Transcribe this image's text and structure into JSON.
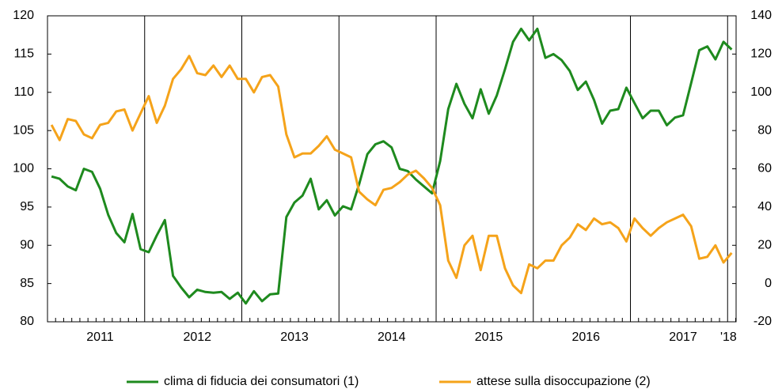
{
  "chart_data": {
    "type": "line",
    "categories": [
      null,
      null,
      null,
      null,
      null,
      null,
      "2011",
      null,
      null,
      null,
      null,
      null,
      null,
      null,
      null,
      null,
      null,
      null,
      "2012",
      null,
      null,
      null,
      null,
      null,
      null,
      null,
      null,
      null,
      null,
      null,
      "2013",
      null,
      null,
      null,
      null,
      null,
      null,
      null,
      null,
      null,
      null,
      null,
      "2014",
      null,
      null,
      null,
      null,
      null,
      null,
      null,
      null,
      null,
      null,
      null,
      "2015",
      null,
      null,
      null,
      null,
      null,
      null,
      null,
      null,
      null,
      null,
      null,
      "2016",
      null,
      null,
      null,
      null,
      null,
      null,
      null,
      null,
      null,
      null,
      null,
      "2017",
      null,
      null,
      null,
      null,
      null,
      "'18"
    ],
    "series": [
      {
        "name": "clima di fiducia dei consumatori (1)",
        "color": "#1e8a1e",
        "values": [
          99,
          98.7,
          97.7,
          97.2,
          100,
          99.6,
          97.4,
          94,
          91.6,
          90.4,
          94.1,
          89.5,
          89.1,
          91.3,
          93.3,
          86,
          84.5,
          83.2,
          84.2,
          83.9,
          83.8,
          83.9,
          83,
          83.8,
          82.4,
          84,
          82.7,
          83.6,
          83.7,
          93.7,
          95.6,
          96.5,
          98.7,
          94.7,
          95.9,
          93.9,
          95.1,
          94.7,
          98,
          101.9,
          103.2,
          103.6,
          102.8,
          100,
          99.7,
          98.6,
          97.7,
          96.8,
          101,
          107.8,
          111.1,
          108.5,
          106.6,
          110.4,
          107.2,
          109.6,
          113,
          116.6,
          118.3,
          116.8,
          118.3,
          114.5,
          115,
          114.2,
          112.8,
          110.3,
          111.4,
          109,
          105.9,
          107.6,
          107.8,
          110.6,
          108.6,
          106.6,
          107.6,
          107.6,
          105.7,
          106.7,
          107,
          111.2,
          115.5,
          116,
          114.3,
          116.6,
          115.6
        ]
      },
      {
        "name": "attese sulla disoccupazione (2)",
        "color": "#f5a31a",
        "axis": "y2",
        "values": [
          83,
          75,
          86,
          85,
          78,
          76,
          83,
          84,
          90,
          91,
          80,
          89,
          98,
          84,
          93,
          107,
          112,
          119,
          110,
          109,
          114,
          108,
          114,
          107,
          107,
          100,
          108,
          109,
          103,
          78,
          66,
          68,
          68,
          72,
          77,
          70,
          68,
          66,
          48,
          44,
          41,
          49,
          50,
          53,
          57,
          59,
          55,
          50,
          41,
          12,
          3,
          20,
          25,
          7,
          25,
          25,
          8,
          -1,
          -5,
          10,
          8,
          12,
          12,
          20,
          24,
          31,
          28,
          34,
          31,
          32,
          29,
          22,
          34,
          29,
          25,
          29,
          32,
          34,
          36,
          30,
          13,
          14,
          20,
          11,
          16
        ]
      }
    ],
    "ylim": [
      80,
      120
    ],
    "yticks": [
      80,
      85,
      90,
      95,
      100,
      105,
      110,
      115,
      120
    ],
    "y2lim": [
      -20,
      140
    ],
    "y2ticks": [
      -20,
      0,
      20,
      40,
      60,
      80,
      100,
      120,
      140
    ]
  }
}
